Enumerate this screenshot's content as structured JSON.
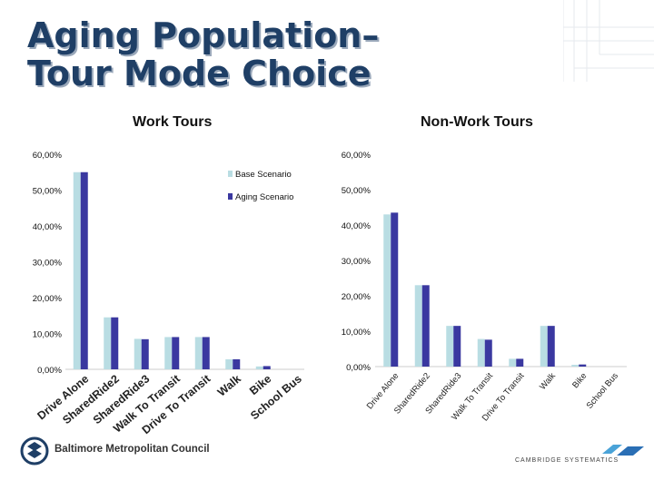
{
  "title": {
    "line1": "Aging Population–",
    "line2": "Tour Mode Choice"
  },
  "colors": {
    "base": "#b9dde3",
    "aging": "#3a38a0",
    "title": "#1f3f66"
  },
  "footer": {
    "left_org": "Baltimore Metropolitan Council",
    "right_org": "CAMBRIDGE SYSTEMATICS"
  },
  "icons": {
    "left_logo": "bmc-logo-icon",
    "right_logo": "cs-logo-icon"
  },
  "chart_data": [
    {
      "type": "bar",
      "title": "Work Tours",
      "ylim": [
        0,
        60
      ],
      "yticks": [
        "0,00%",
        "10,00%",
        "20,00%",
        "30,00%",
        "40,00%",
        "50,00%",
        "60,00%"
      ],
      "categories": [
        "Drive Alone",
        "SharedRide2",
        "SharedRide3",
        "Walk To Transit",
        "Drive To Transit",
        "Walk",
        "Bike",
        "School Bus"
      ],
      "series": [
        {
          "name": "Base Scenario",
          "values": [
            55.0,
            14.5,
            8.5,
            9.0,
            9.0,
            2.8,
            0.8,
            0
          ]
        },
        {
          "name": "Aging Scenario",
          "values": [
            55.0,
            14.5,
            8.4,
            9.0,
            9.0,
            2.8,
            0.9,
            0
          ]
        }
      ],
      "legend": "top-right"
    },
    {
      "type": "bar",
      "title": "Non-Work Tours",
      "ylim": [
        0,
        60
      ],
      "yticks": [
        "0,00%",
        "10,00%",
        "20,00%",
        "30,00%",
        "40,00%",
        "50,00%",
        "60,00%"
      ],
      "categories": [
        "Drive Alone",
        "SharedRide2",
        "SharedRide3",
        "Walk To Transit",
        "Drive To Transit",
        "Walk",
        "Bike",
        "School Bus"
      ],
      "series": [
        {
          "name": "Base Scenario",
          "values": [
            43.0,
            23.0,
            11.5,
            7.8,
            2.2,
            11.5,
            0.5,
            0
          ]
        },
        {
          "name": "Aging Scenario",
          "values": [
            43.5,
            23.0,
            11.5,
            7.6,
            2.2,
            11.5,
            0.6,
            0
          ]
        }
      ]
    }
  ]
}
